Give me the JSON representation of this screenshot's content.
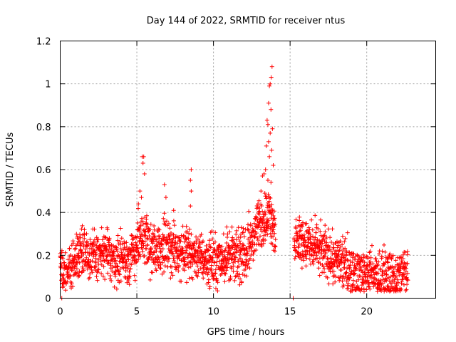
{
  "chart_data": {
    "type": "scatter",
    "title": "Day 144 of 2022, SRMTID for receiver ntus",
    "xlabel": "GPS time / hours",
    "ylabel": "SRMTID / TECUs",
    "xlim": [
      0,
      24.5
    ],
    "ylim": [
      0,
      1.2
    ],
    "x_ticks": [
      0,
      5,
      10,
      15,
      20
    ],
    "y_ticks": [
      0,
      0.2,
      0.4,
      0.6,
      0.8,
      1,
      1.2
    ],
    "x_tick_labels": [
      "0",
      "5",
      "10",
      "15",
      "20"
    ],
    "y_tick_labels": [
      "0",
      "0.2",
      "0.4",
      "0.6",
      "0.8",
      "1",
      "1.2"
    ],
    "grid": true,
    "marker": "+",
    "series": [
      {
        "name": "SRMTID",
        "color": "#ff0000",
        "profile": [
          [
            0.0,
            0.13
          ],
          [
            0.5,
            0.11
          ],
          [
            1.0,
            0.18
          ],
          [
            1.5,
            0.24
          ],
          [
            2.0,
            0.19
          ],
          [
            2.5,
            0.2
          ],
          [
            3.0,
            0.21
          ],
          [
            3.5,
            0.18
          ],
          [
            4.0,
            0.19
          ],
          [
            4.5,
            0.17
          ],
          [
            5.0,
            0.24
          ],
          [
            5.5,
            0.28
          ],
          [
            6.0,
            0.22
          ],
          [
            6.5,
            0.24
          ],
          [
            7.0,
            0.23
          ],
          [
            7.5,
            0.22
          ],
          [
            8.0,
            0.22
          ],
          [
            8.5,
            0.21
          ],
          [
            9.0,
            0.2
          ],
          [
            9.5,
            0.18
          ],
          [
            10.0,
            0.17
          ],
          [
            10.5,
            0.18
          ],
          [
            11.0,
            0.2
          ],
          [
            11.5,
            0.19
          ],
          [
            12.0,
            0.2
          ],
          [
            12.5,
            0.26
          ],
          [
            13.0,
            0.34
          ],
          [
            13.5,
            0.38
          ],
          [
            13.9,
            0.36
          ],
          [
            14.0,
            0.3
          ],
          [
            15.3,
            0.25
          ],
          [
            15.8,
            0.27
          ],
          [
            16.5,
            0.23
          ],
          [
            17.0,
            0.22
          ],
          [
            17.5,
            0.2
          ],
          [
            18.0,
            0.17
          ],
          [
            18.5,
            0.15
          ],
          [
            19.0,
            0.13
          ],
          [
            19.5,
            0.12
          ],
          [
            20.0,
            0.13
          ],
          [
            20.5,
            0.11
          ],
          [
            21.0,
            0.09
          ],
          [
            21.5,
            0.1
          ],
          [
            22.0,
            0.09
          ],
          [
            22.5,
            0.13
          ],
          [
            22.7,
            0.15
          ]
        ],
        "gaps": [
          [
            14.05,
            15.25
          ]
        ],
        "spread": 0.07,
        "sample_interval_hours": 0.01,
        "outliers": [
          {
            "x": 0.1,
            "y": 0.0
          },
          {
            "x": 15.2,
            "y": 0.0
          },
          {
            "x": 5.35,
            "y": 0.66
          },
          {
            "x": 5.45,
            "y": 0.66
          },
          {
            "x": 5.4,
            "y": 0.63
          },
          {
            "x": 5.5,
            "y": 0.58
          },
          {
            "x": 5.2,
            "y": 0.5
          },
          {
            "x": 5.3,
            "y": 0.47
          },
          {
            "x": 5.1,
            "y": 0.44
          },
          {
            "x": 6.8,
            "y": 0.53
          },
          {
            "x": 6.9,
            "y": 0.47
          },
          {
            "x": 7.4,
            "y": 0.41
          },
          {
            "x": 8.55,
            "y": 0.6
          },
          {
            "x": 8.5,
            "y": 0.55
          },
          {
            "x": 8.55,
            "y": 0.5
          },
          {
            "x": 8.5,
            "y": 0.43
          },
          {
            "x": 13.82,
            "y": 1.08
          },
          {
            "x": 13.77,
            "y": 1.03
          },
          {
            "x": 13.7,
            "y": 1.0
          },
          {
            "x": 13.65,
            "y": 0.99
          },
          {
            "x": 13.6,
            "y": 0.91
          },
          {
            "x": 13.75,
            "y": 0.88
          },
          {
            "x": 13.5,
            "y": 0.83
          },
          {
            "x": 13.55,
            "y": 0.81
          },
          {
            "x": 13.85,
            "y": 0.79
          },
          {
            "x": 13.7,
            "y": 0.77
          },
          {
            "x": 13.6,
            "y": 0.73
          },
          {
            "x": 13.45,
            "y": 0.71
          },
          {
            "x": 13.8,
            "y": 0.69
          },
          {
            "x": 13.65,
            "y": 0.66
          },
          {
            "x": 13.9,
            "y": 0.62
          },
          {
            "x": 13.4,
            "y": 0.6
          },
          {
            "x": 13.3,
            "y": 0.58
          },
          {
            "x": 13.2,
            "y": 0.57
          },
          {
            "x": 13.55,
            "y": 0.55
          },
          {
            "x": 13.75,
            "y": 0.54
          },
          {
            "x": 13.1,
            "y": 0.5
          },
          {
            "x": 13.35,
            "y": 0.49
          },
          {
            "x": 13.65,
            "y": 0.47
          },
          {
            "x": 12.9,
            "y": 0.44
          },
          {
            "x": 13.0,
            "y": 0.42
          },
          {
            "x": 13.85,
            "y": 0.41
          },
          {
            "x": 13.25,
            "y": 0.39
          },
          {
            "x": 13.5,
            "y": 0.37
          }
        ]
      }
    ]
  }
}
